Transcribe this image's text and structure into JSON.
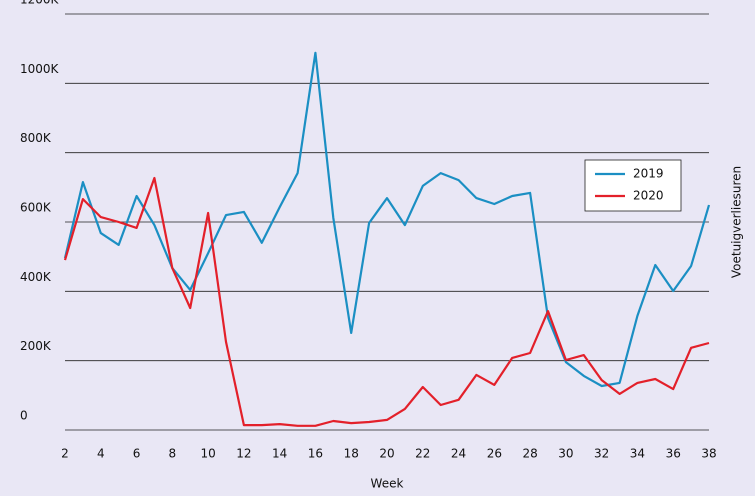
{
  "chart_data": {
    "type": "line",
    "x_label": "Week",
    "y_label": "Voetuigverliesuren",
    "categories": [
      "2",
      null,
      "4",
      null,
      "6",
      null,
      "8",
      null,
      "10",
      null,
      "12",
      null,
      "14",
      null,
      "16",
      null,
      "18",
      null,
      "20",
      null,
      "22",
      null,
      "24",
      null,
      "26",
      null,
      "28",
      null,
      "30",
      null,
      "32",
      null,
      "34",
      null,
      "36",
      null,
      "38"
    ],
    "series": [
      {
        "name": "2019",
        "color": "#1b8fc3",
        "values": [
          496,
          715,
          568,
          534,
          675,
          591,
          467,
          404,
          510,
          620,
          629,
          540,
          643,
          741,
          1088,
          612,
          280,
          597,
          669,
          591,
          704,
          741,
          721,
          669,
          652,
          675,
          684,
          323,
          196,
          156,
          127,
          136,
          329,
          476,
          401,
          473,
          649
        ]
      },
      {
        "name": "2020",
        "color": "#e3202a",
        "values": [
          490,
          666,
          614,
          600,
          583,
          727,
          467,
          352,
          626,
          254,
          14,
          14,
          17,
          12,
          12,
          26,
          20,
          23,
          29,
          61,
          124,
          72,
          87,
          159,
          130,
          208,
          222,
          343,
          202,
          216,
          144,
          104,
          136,
          147,
          118,
          237,
          251
        ]
      }
    ],
    "ylim": [
      0,
      1200
    ],
    "yticks": [
      {
        "value": 0,
        "label": "0"
      },
      {
        "value": 200,
        "label": "200K"
      },
      {
        "value": 400,
        "label": "400K"
      },
      {
        "value": 600,
        "label": "600K"
      },
      {
        "value": 800,
        "label": "800K"
      },
      {
        "value": 1000,
        "label": "1000K"
      },
      {
        "value": 1200,
        "label": "1200K"
      }
    ],
    "grid": true,
    "legend": "right"
  }
}
